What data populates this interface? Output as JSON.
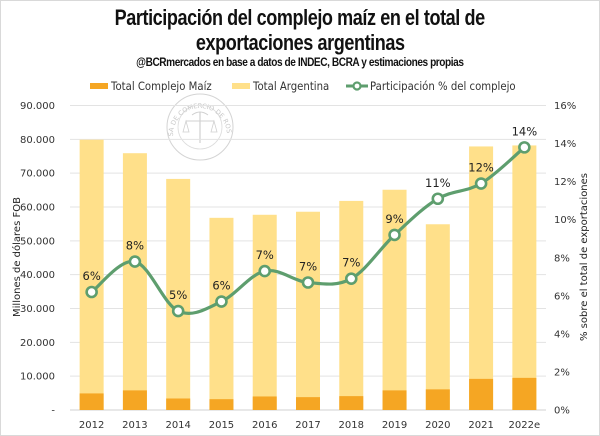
{
  "chart_data": {
    "type": "bar",
    "title": "Participación del complejo maíz en el total de exportaciones argentinas",
    "title_lines": [
      "Participación del complejo maíz en el total de",
      "exportaciones argentinas"
    ],
    "subtitle": "@BCRmercados en base a datos de INDEC, BCRA y estimaciones propias",
    "watermark": "BOLSA DE COMERCIO DE ROSARIO",
    "categories": [
      "2012",
      "2013",
      "2014",
      "2015",
      "2016",
      "2017",
      "2018",
      "2019",
      "2020",
      "2021",
      "2022e"
    ],
    "series": [
      {
        "name": "Total Argentina",
        "type": "bar",
        "axis": "left",
        "color": "#ffe08a",
        "values": [
          79900,
          75900,
          68300,
          56800,
          57700,
          58600,
          61800,
          65100,
          54900,
          77900,
          78200
        ]
      },
      {
        "name": "Total Complejo Maíz",
        "type": "bar",
        "axis": "left",
        "color": "#f5a623",
        "values": [
          4900,
          5800,
          3400,
          3200,
          4000,
          3800,
          4100,
          5800,
          6100,
          9200,
          9500
        ]
      },
      {
        "name": "Participación % del complejo",
        "type": "line",
        "axis": "right",
        "color": "#5e9e6e",
        "values": [
          6.2,
          7.8,
          5.2,
          5.7,
          7.3,
          6.7,
          6.9,
          9.2,
          11.1,
          11.9,
          13.8
        ],
        "data_labels": [
          "6%",
          "8%",
          "5%",
          "6%",
          "7%",
          "7%",
          "7%",
          "9%",
          "11%",
          "12%",
          "14%"
        ]
      }
    ],
    "legend": {
      "position": "top",
      "items": [
        {
          "label": "Total Complejo Maíz",
          "color": "#f5a623",
          "marker": "bar"
        },
        {
          "label": "Total Argentina",
          "color": "#ffe08a",
          "marker": "bar"
        },
        {
          "label": "Participación % del complejo",
          "color": "#5e9e6e",
          "marker": "line-circle"
        }
      ]
    },
    "ylabel": "Millones de dólares FOB",
    "ylim": [
      0,
      90000
    ],
    "yticks": [
      0,
      10000,
      20000,
      30000,
      40000,
      50000,
      60000,
      70000,
      80000,
      90000
    ],
    "ytick_labels": [
      "-",
      "10.000",
      "20.000",
      "30.000",
      "40.000",
      "50.000",
      "60.000",
      "70.000",
      "80.000",
      "90.000"
    ],
    "y2label": "% sobre el total de exportaciones",
    "y2lim": [
      0,
      16
    ],
    "y2ticks": [
      0,
      2,
      4,
      6,
      8,
      10,
      12,
      14,
      16
    ],
    "y2tick_labels": [
      "0%",
      "2%",
      "4%",
      "6%",
      "8%",
      "10%",
      "12%",
      "14%",
      "16%"
    ],
    "grid": true,
    "overlap": "bars overlapped (Total Argentina behind Total Complejo Maíz)"
  }
}
